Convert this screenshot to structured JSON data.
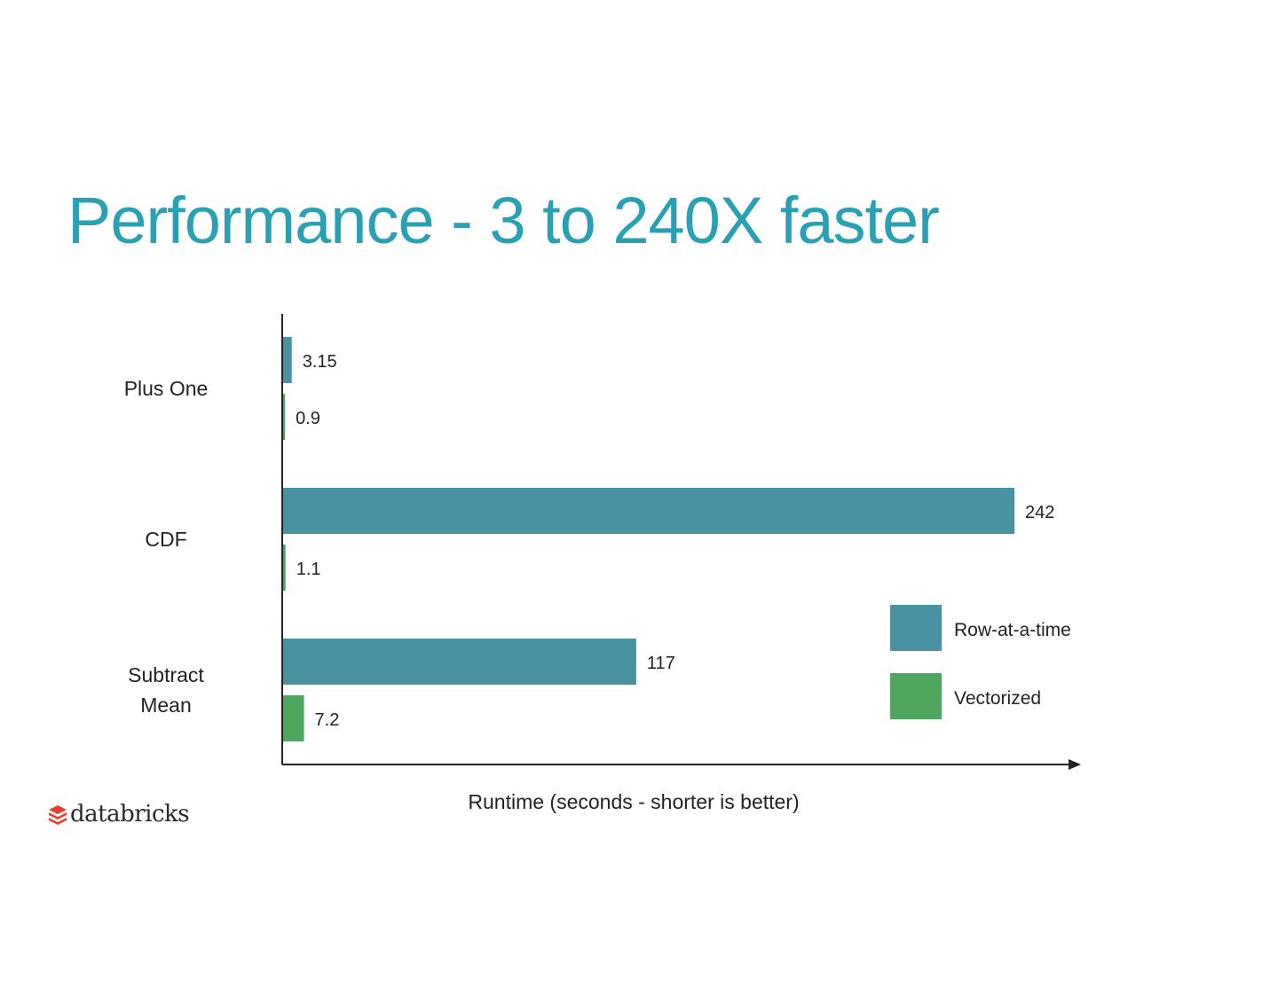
{
  "title": "Performance - 3 to 240X faster",
  "colors": {
    "title": "#2aa0b4",
    "row_at_a_time": "#4892a2",
    "vectorized": "#4fa65f",
    "axis": "#222222",
    "text": "#222222",
    "logo_mark": "#e8402f"
  },
  "chart_data": {
    "type": "bar",
    "orientation": "horizontal",
    "categories": [
      "Plus One",
      "CDF",
      "Subtract Mean"
    ],
    "series": [
      {
        "name": "Row-at-a-time",
        "values": [
          3.15,
          242,
          117
        ],
        "labels": [
          "3.15",
          "242",
          "117"
        ]
      },
      {
        "name": "Vectorized",
        "values": [
          0.9,
          1.1,
          7.2
        ],
        "labels": [
          "0.9",
          "1.1",
          "7.2"
        ]
      }
    ],
    "xlabel": "Runtime (seconds - shorter is better)",
    "ylabel": "",
    "xlim": [
      0,
      264
    ],
    "grid": false,
    "legend": "bottom-right"
  },
  "logo": {
    "icon": "databricks-stack-icon",
    "text": "databricks"
  }
}
